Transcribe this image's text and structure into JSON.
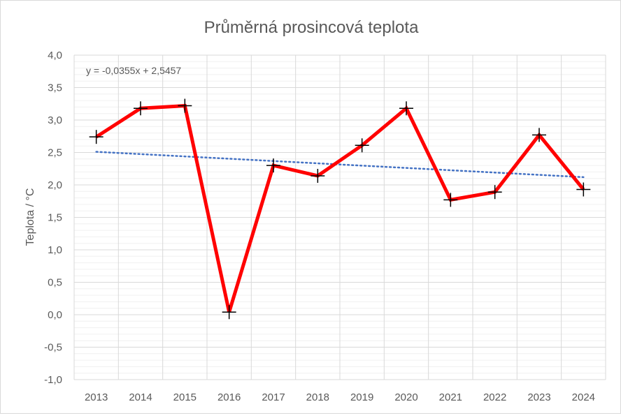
{
  "chart_data": {
    "type": "line",
    "title": "Průměrná prosincová teplota",
    "xlabel": "",
    "ylabel": "Teplota / °C",
    "categories": [
      "2013",
      "2014",
      "2015",
      "2016",
      "2017",
      "2018",
      "2019",
      "2020",
      "2021",
      "2022",
      "2023",
      "2024"
    ],
    "series": [
      {
        "values": [
          2.74,
          3.18,
          3.22,
          0.04,
          2.3,
          2.14,
          2.61,
          3.18,
          1.77,
          1.89,
          2.77,
          1.93
        ],
        "color": "#ff0000",
        "marker": "plus"
      }
    ],
    "trendline": {
      "type": "linear",
      "slope": -0.0355,
      "intercept": 2.5457,
      "color": "#4472c4",
      "style": "dotted",
      "label": "y = -0,0355x + 2,5457"
    },
    "ylim": [
      -1,
      4
    ],
    "yticks": [
      "-1,0",
      "-0,5",
      "0,0",
      "0,5",
      "1,0",
      "1,5",
      "2,0",
      "2,5",
      "3,0",
      "3,5",
      "4,0"
    ],
    "grid": {
      "major": true,
      "minor": true,
      "vertical": true
    },
    "legend": "none"
  }
}
